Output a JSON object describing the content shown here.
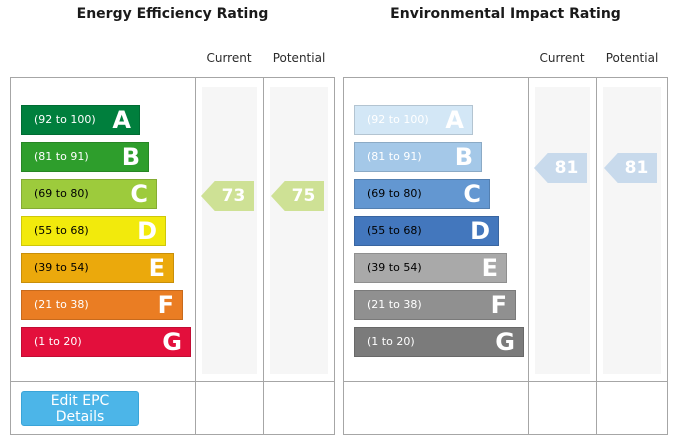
{
  "chart_data": [
    {
      "type": "bar",
      "title": "Energy Efficiency Rating",
      "columns": {
        "current": "Current",
        "potential": "Potential"
      },
      "bands": [
        {
          "letter": "A",
          "range": "(92 to 100)",
          "min": 92,
          "max": 100,
          "color": "#007f3d",
          "text_color": "#ffffff"
        },
        {
          "letter": "B",
          "range": "(81 to 91)",
          "min": 81,
          "max": 91,
          "color": "#2e9e2c",
          "text_color": "#ffffff"
        },
        {
          "letter": "C",
          "range": "(69 to 80)",
          "min": 69,
          "max": 80,
          "color": "#9dcb3c",
          "text_color": "#000000"
        },
        {
          "letter": "D",
          "range": "(55 to 68)",
          "min": 55,
          "max": 68,
          "color": "#f2ea0c",
          "text_color": "#000000"
        },
        {
          "letter": "E",
          "range": "(39 to 54)",
          "min": 39,
          "max": 54,
          "color": "#eba90c",
          "text_color": "#000000"
        },
        {
          "letter": "F",
          "range": "(21 to 38)",
          "min": 21,
          "max": 38,
          "color": "#ea7d23",
          "text_color": "#ffffff"
        },
        {
          "letter": "G",
          "range": "(1 to 20)",
          "min": 1,
          "max": 20,
          "color": "#e30f3c",
          "text_color": "#ffffff"
        }
      ],
      "current": {
        "value": 73,
        "band": "C",
        "arrow_color": "#cee195"
      },
      "potential": {
        "value": 75,
        "band": "C",
        "arrow_color": "#cee195"
      }
    },
    {
      "type": "bar",
      "title": "Environmental Impact Rating",
      "columns": {
        "current": "Current",
        "potential": "Potential"
      },
      "bands": [
        {
          "letter": "A",
          "range": "(92 to 100)",
          "min": 92,
          "max": 100,
          "color": "#d3e7f6",
          "text_color": "#ffffff"
        },
        {
          "letter": "B",
          "range": "(81 to 91)",
          "min": 81,
          "max": 91,
          "color": "#a4c8e8",
          "text_color": "#ffffff"
        },
        {
          "letter": "C",
          "range": "(69 to 80)",
          "min": 69,
          "max": 80,
          "color": "#6397d1",
          "text_color": "#000000"
        },
        {
          "letter": "D",
          "range": "(55 to 68)",
          "min": 55,
          "max": 68,
          "color": "#4377bd",
          "text_color": "#000000"
        },
        {
          "letter": "E",
          "range": "(39 to 54)",
          "min": 39,
          "max": 54,
          "color": "#a9a9a9",
          "text_color": "#000000"
        },
        {
          "letter": "F",
          "range": "(21 to 38)",
          "min": 21,
          "max": 38,
          "color": "#909090",
          "text_color": "#ffffff"
        },
        {
          "letter": "G",
          "range": "(1 to 20)",
          "min": 1,
          "max": 20,
          "color": "#7b7b7b",
          "text_color": "#ffffff"
        }
      ],
      "current": {
        "value": 81,
        "band": "B",
        "arrow_color": "#c8daec"
      },
      "potential": {
        "value": 81,
        "band": "B",
        "arrow_color": "#c8daec"
      }
    }
  ],
  "footer": {
    "button_label": "Edit EPC Details",
    "button_color": "#4cb5e8"
  }
}
